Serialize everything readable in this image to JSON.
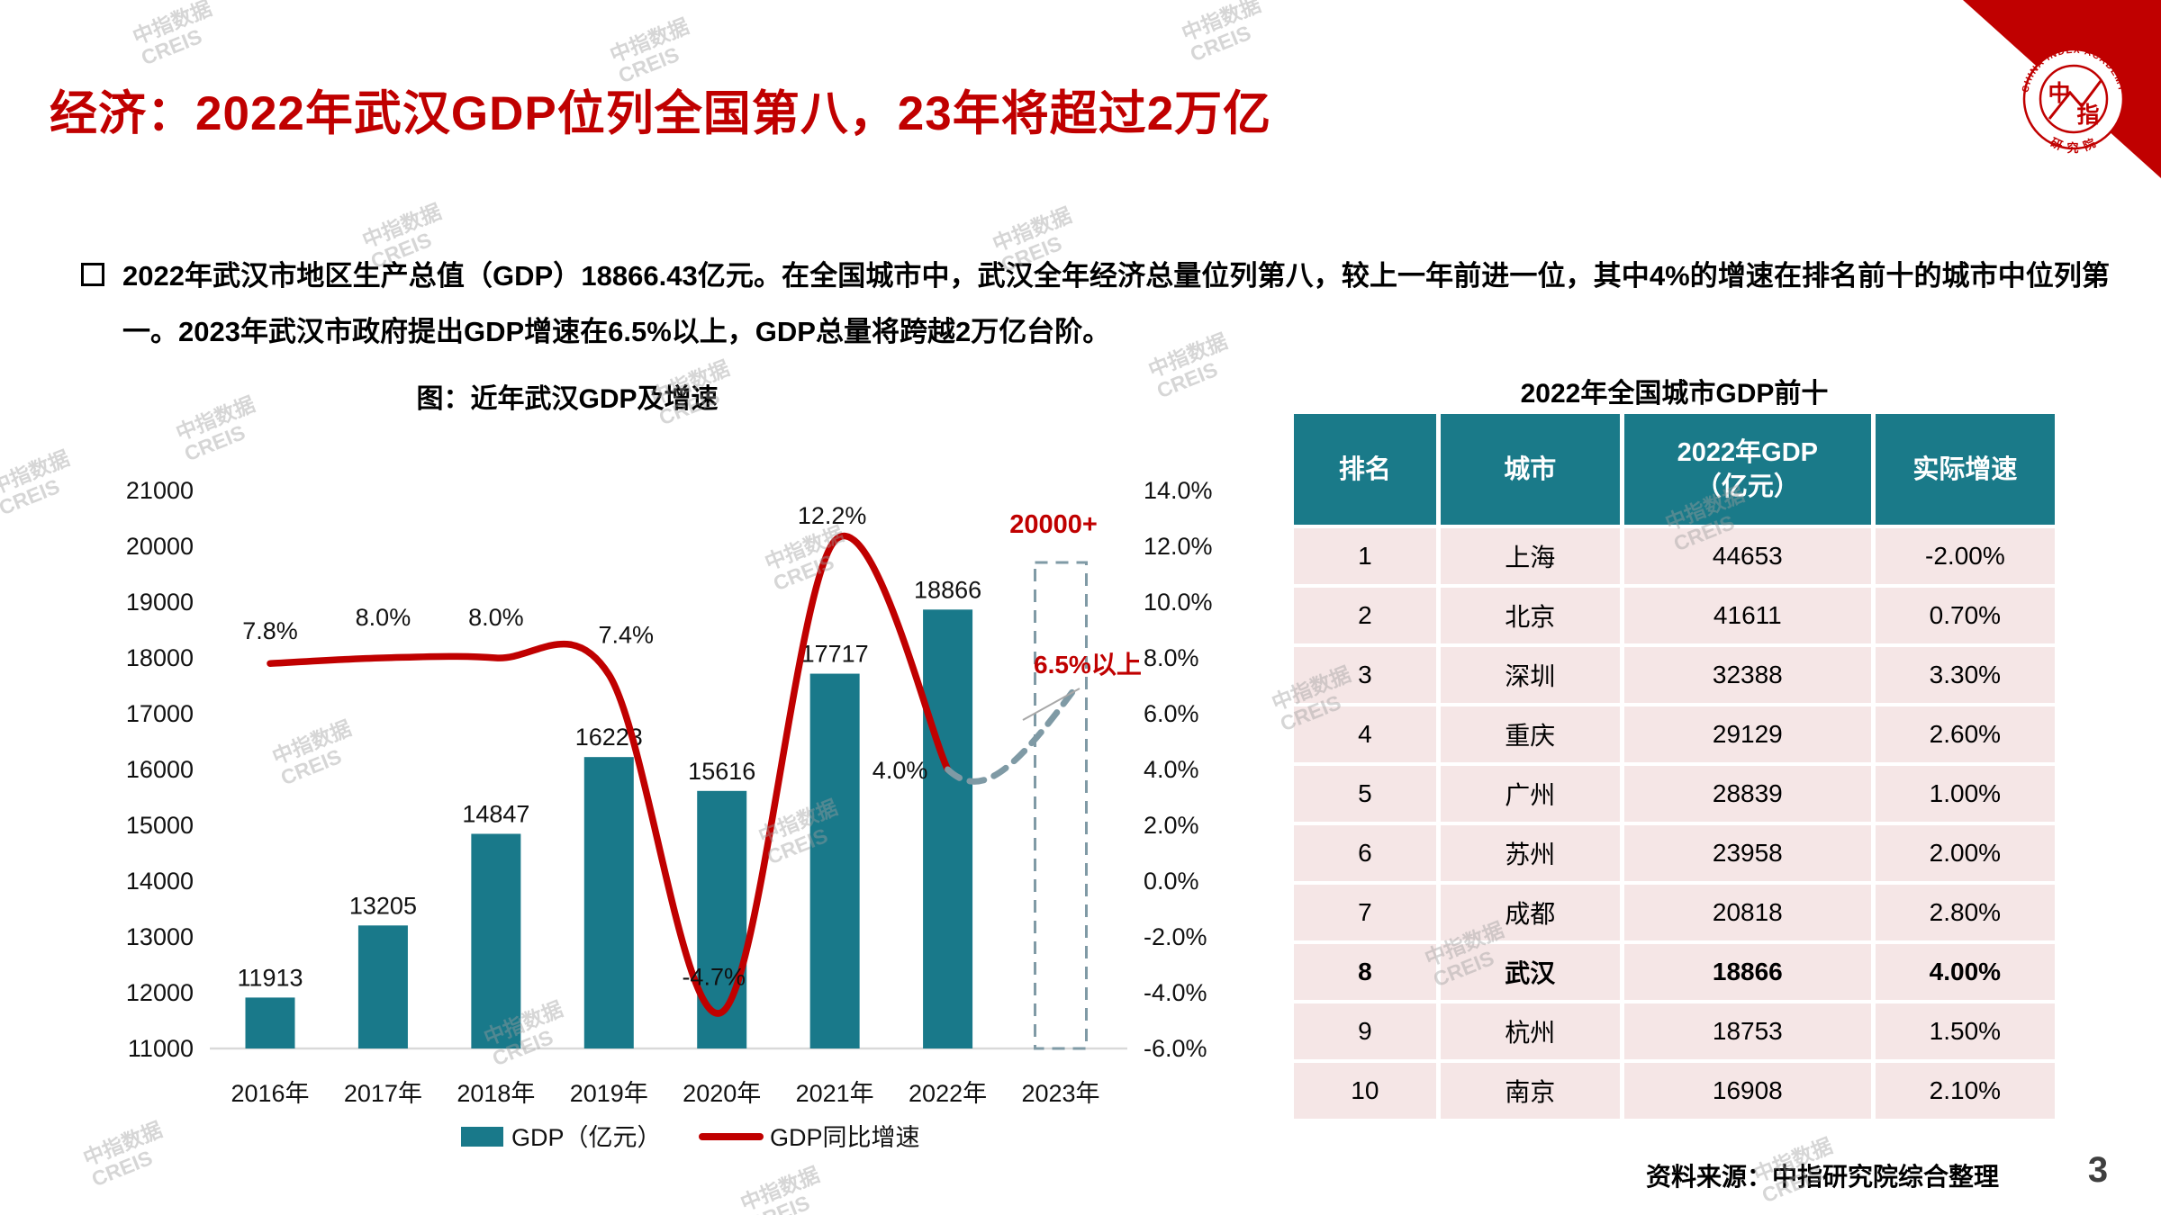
{
  "slide": {
    "title": "经济：2022年武汉GDP位列全国第八，23年将超过2万亿",
    "bullet_text": "2022年武汉市地区生产总值（GDP）18866.43亿元。在全国城市中，武汉全年经济总量位列第八，较上一年前进一位，其中4%的增速在排名前十的城市中位列第一。2023年武汉市政府提出GDP增速在6.5%以上，GDP总量将跨越2万亿台阶。",
    "source": "资料来源：中指研究院综合整理",
    "page_number": "3",
    "watermark_line1": "中指数据",
    "watermark_line2": "CREIS"
  },
  "logo": {
    "arc_top": "CHINA INDEX ACADEMY",
    "center_char1": "中",
    "center_char2": "指",
    "arc_bottom": "研 究 院"
  },
  "chart_data": {
    "type": "bar+line",
    "title": "图：近年武汉GDP及增速",
    "categories": [
      "2016年",
      "2017年",
      "2018年",
      "2019年",
      "2020年",
      "2021年",
      "2022年",
      "2023年"
    ],
    "series": [
      {
        "name": "GDP（亿元）",
        "type": "bar",
        "values": [
          11913,
          13205,
          14847,
          16223,
          15616,
          17717,
          18866,
          null
        ],
        "point_labels": [
          "11913",
          "13205",
          "14847",
          "16223",
          "15616",
          "17717",
          "18866",
          ""
        ]
      },
      {
        "name": "GDP同比增速",
        "type": "line",
        "values": [
          7.8,
          8.0,
          8.0,
          7.4,
          -4.7,
          12.2,
          4.0,
          null
        ],
        "point_labels": [
          "7.8%",
          "8.0%",
          "8.0%",
          "7.4%",
          "-4.7%",
          "12.2%",
          "4.0%",
          ""
        ]
      }
    ],
    "forecast_2023": {
      "bar_label": "20000+",
      "bar_top_value": 20000,
      "growth_label": "6.5%以上",
      "growth_value_est": 7.0
    },
    "left_axis": {
      "min": 11000,
      "max": 21000,
      "step": 1000
    },
    "right_axis": {
      "min": -6,
      "max": 14,
      "step": 2,
      "suffix": "%"
    },
    "legend": [
      "GDP（亿元）",
      "GDP同比增速"
    ],
    "colors": {
      "bar": "#19798A",
      "line": "#C00000",
      "forecast": "#7F9AA5"
    }
  },
  "table": {
    "title": "2022年全国城市GDP前十",
    "headers": [
      "排名",
      "城市",
      "2022年GDP\n（亿元）",
      "实际增速"
    ],
    "rows": [
      [
        "1",
        "上海",
        "44653",
        "-2.00%"
      ],
      [
        "2",
        "北京",
        "41611",
        "0.70%"
      ],
      [
        "3",
        "深圳",
        "32388",
        "3.30%"
      ],
      [
        "4",
        "重庆",
        "29129",
        "2.60%"
      ],
      [
        "5",
        "广州",
        "28839",
        "1.00%"
      ],
      [
        "6",
        "苏州",
        "23958",
        "2.00%"
      ],
      [
        "7",
        "成都",
        "20818",
        "2.80%"
      ],
      [
        "8",
        "武汉",
        "18866",
        "4.00%"
      ],
      [
        "9",
        "杭州",
        "18753",
        "1.50%"
      ],
      [
        "10",
        "南京",
        "16908",
        "2.10%"
      ]
    ],
    "highlight_city": "武汉"
  }
}
